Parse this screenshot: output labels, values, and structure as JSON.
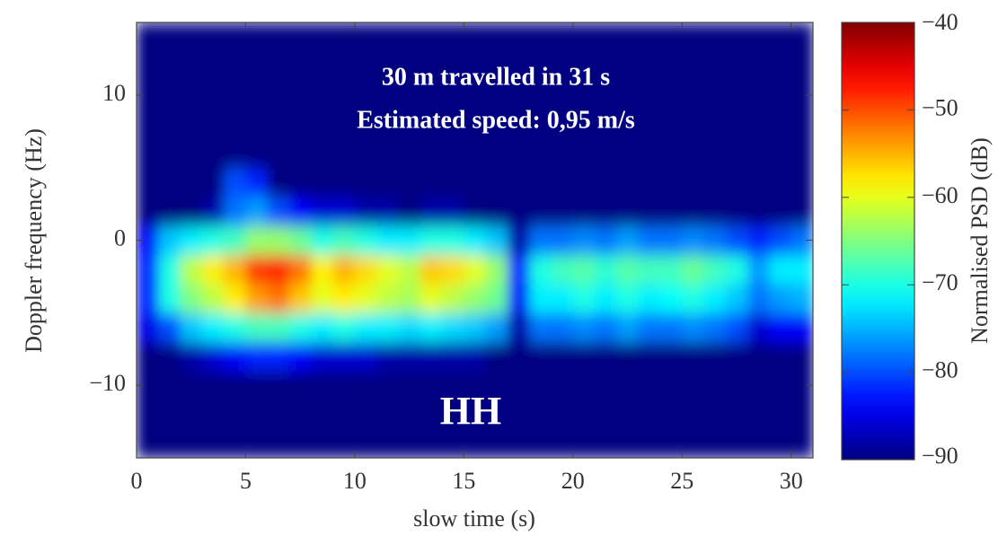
{
  "chart_data": {
    "type": "heatmap",
    "annotations": [
      "30 m travelled in 31 s",
      "Estimated speed: 0,95 m/s",
      "HH"
    ],
    "xlabel": "slow time (s)",
    "ylabel": "Doppler frequency (Hz)",
    "colorbar_label": "Normalised PSD (dB)",
    "colormap": "jet",
    "xlim": [
      0,
      31
    ],
    "ylim": [
      -15,
      15
    ],
    "xticks": [
      0,
      5,
      10,
      15,
      20,
      25,
      30
    ],
    "yticks": [
      {
        "value": -10,
        "label": "−10"
      },
      0,
      10
    ],
    "zlim": [
      -90,
      -40
    ],
    "zticks": [
      {
        "value": -90,
        "label": "−90"
      },
      {
        "value": -80,
        "label": "−80"
      },
      {
        "value": -70,
        "label": "−70"
      },
      {
        "value": -60,
        "label": "−60"
      },
      {
        "value": -50,
        "label": "−50"
      },
      {
        "value": -40,
        "label": "−40"
      }
    ],
    "xbins": [
      0,
      1,
      2,
      3,
      4,
      5,
      6,
      7,
      8,
      9,
      10,
      11,
      12,
      13,
      14,
      15,
      16,
      17,
      18,
      19,
      20,
      21,
      22,
      23,
      24,
      25,
      26,
      27,
      28,
      29,
      30,
      31
    ],
    "ybins": [
      -15,
      -13,
      -11,
      -9,
      -7,
      -5,
      -3,
      -1,
      1,
      3,
      5,
      7,
      9,
      11,
      13,
      15
    ],
    "z": [
      [
        -90,
        -90,
        -90,
        -90,
        -90,
        -90,
        -90,
        -90,
        -90,
        -90,
        -90,
        -90,
        -90,
        -90,
        -90,
        -90,
        -90,
        -90,
        -90,
        -90,
        -90,
        -90,
        -90,
        -90,
        -90,
        -90,
        -90,
        -90,
        -90,
        -90,
        -90
      ],
      [
        -90,
        -90,
        -90,
        -90,
        -90,
        -90,
        -90,
        -90,
        -90,
        -90,
        -90,
        -90,
        -90,
        -90,
        -90,
        -90,
        -90,
        -90,
        -90,
        -90,
        -90,
        -90,
        -90,
        -90,
        -90,
        -90,
        -90,
        -90,
        -90,
        -90,
        -90
      ],
      [
        -90,
        -90,
        -90,
        -90,
        -90,
        -90,
        -90,
        -90,
        -90,
        -90,
        -90,
        -90,
        -90,
        -90,
        -90,
        -90,
        -90,
        -90,
        -90,
        -90,
        -90,
        -90,
        -90,
        -90,
        -90,
        -90,
        -90,
        -90,
        -90,
        -90,
        -90
      ],
      [
        -90,
        -90,
        -88,
        -86,
        -84,
        -82,
        -82,
        -84,
        -86,
        -86,
        -86,
        -88,
        -88,
        -88,
        -88,
        -88,
        -90,
        -90,
        -90,
        -90,
        -90,
        -90,
        -90,
        -90,
        -90,
        -90,
        -90,
        -90,
        -90,
        -90,
        -90
      ],
      [
        -85,
        -80,
        -74,
        -72,
        -70,
        -68,
        -68,
        -70,
        -72,
        -70,
        -72,
        -72,
        -73,
        -72,
        -73,
        -74,
        -76,
        -88,
        -78,
        -78,
        -77,
        -78,
        -76,
        -78,
        -78,
        -77,
        -78,
        -80,
        -86,
        -84,
        -84
      ],
      [
        -82,
        -70,
        -65,
        -62,
        -58,
        -54,
        -52,
        -56,
        -60,
        -58,
        -60,
        -62,
        -63,
        -60,
        -62,
        -64,
        -66,
        -84,
        -72,
        -72,
        -70,
        -72,
        -70,
        -72,
        -71,
        -70,
        -72,
        -74,
        -78,
        -76,
        -75
      ],
      [
        -82,
        -70,
        -62,
        -58,
        -55,
        -49,
        -48,
        -52,
        -58,
        -55,
        -57,
        -60,
        -62,
        -56,
        -57,
        -60,
        -64,
        -82,
        -70,
        -68,
        -67,
        -69,
        -67,
        -68,
        -68,
        -66,
        -68,
        -70,
        -76,
        -72,
        -72
      ],
      [
        -84,
        -74,
        -72,
        -70,
        -68,
        -64,
        -64,
        -66,
        -70,
        -68,
        -70,
        -72,
        -72,
        -70,
        -70,
        -72,
        -74,
        -88,
        -78,
        -78,
        -77,
        -78,
        -76,
        -78,
        -78,
        -77,
        -78,
        -80,
        -82,
        -80,
        -78
      ],
      [
        -90,
        -90,
        -90,
        -88,
        -78,
        -76,
        -80,
        -84,
        -86,
        -86,
        -88,
        -88,
        -90,
        -88,
        -88,
        -90,
        -90,
        -90,
        -90,
        -90,
        -90,
        -90,
        -90,
        -90,
        -90,
        -90,
        -90,
        -90,
        -90,
        -90,
        -90
      ],
      [
        -90,
        -90,
        -90,
        -90,
        -80,
        -82,
        -90,
        -90,
        -90,
        -90,
        -90,
        -90,
        -90,
        -90,
        -90,
        -90,
        -90,
        -90,
        -90,
        -90,
        -90,
        -90,
        -90,
        -90,
        -90,
        -90,
        -90,
        -90,
        -90,
        -90,
        -90
      ],
      [
        -90,
        -90,
        -90,
        -90,
        -90,
        -90,
        -90,
        -90,
        -90,
        -90,
        -90,
        -90,
        -90,
        -90,
        -90,
        -90,
        -90,
        -90,
        -90,
        -90,
        -90,
        -90,
        -90,
        -90,
        -90,
        -90,
        -90,
        -90,
        -90,
        -90,
        -90
      ],
      [
        -90,
        -90,
        -90,
        -90,
        -90,
        -90,
        -90,
        -90,
        -90,
        -90,
        -90,
        -90,
        -90,
        -90,
        -90,
        -90,
        -90,
        -90,
        -90,
        -90,
        -90,
        -90,
        -90,
        -90,
        -90,
        -90,
        -90,
        -90,
        -90,
        -90,
        -90
      ],
      [
        -90,
        -90,
        -90,
        -90,
        -90,
        -90,
        -90,
        -90,
        -90,
        -90,
        -90,
        -90,
        -90,
        -90,
        -90,
        -90,
        -90,
        -90,
        -90,
        -90,
        -90,
        -90,
        -90,
        -90,
        -90,
        -90,
        -90,
        -90,
        -90,
        -90,
        -90
      ],
      [
        -90,
        -90,
        -90,
        -90,
        -90,
        -90,
        -90,
        -90,
        -90,
        -90,
        -90,
        -90,
        -90,
        -90,
        -90,
        -90,
        -90,
        -90,
        -90,
        -90,
        -90,
        -90,
        -90,
        -90,
        -90,
        -90,
        -90,
        -90,
        -90,
        -90,
        -90
      ],
      [
        -90,
        -90,
        -90,
        -90,
        -90,
        -90,
        -90,
        -90,
        -90,
        -90,
        -90,
        -90,
        -90,
        -90,
        -90,
        -90,
        -90,
        -90,
        -90,
        -90,
        -90,
        -90,
        -90,
        -90,
        -90,
        -90,
        -90,
        -90,
        -90,
        -90,
        -90
      ]
    ]
  }
}
